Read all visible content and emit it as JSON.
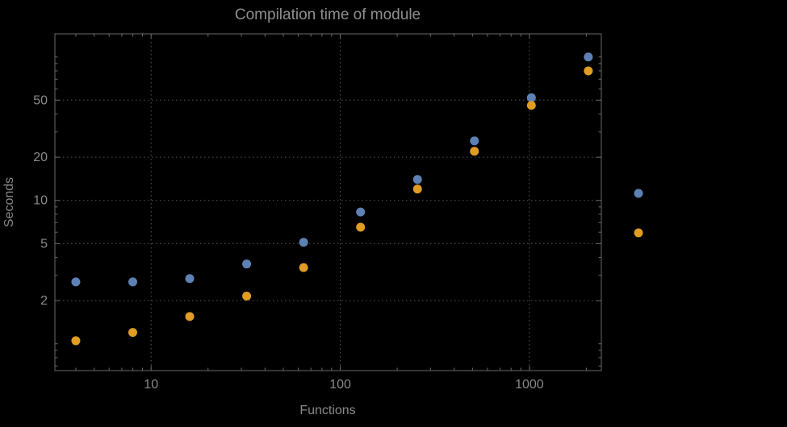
{
  "chart_data": {
    "type": "scatter",
    "title": "Compilation time of module",
    "xlabel": "Functions",
    "ylabel": "Seconds",
    "xscale": "log",
    "yscale": "log",
    "xlim": [
      3.1,
      2400
    ],
    "ylim": [
      0.65,
      145
    ],
    "x_ticks": [
      10,
      100,
      1000
    ],
    "y_ticks": [
      2,
      5,
      10,
      20,
      50
    ],
    "grid": "dotted",
    "legend_position": "right",
    "x": [
      4,
      8,
      16,
      32,
      64,
      128,
      256,
      512,
      1024,
      2048
    ],
    "series": [
      {
        "name": "series-blue",
        "color": "#5e81b5",
        "values": [
          2.7,
          2.7,
          2.85,
          3.6,
          5.1,
          8.3,
          14,
          26,
          52,
          100
        ]
      },
      {
        "name": "series-orange",
        "color": "#e19c24",
        "values": [
          1.05,
          1.2,
          1.55,
          2.15,
          3.4,
          6.5,
          12,
          22,
          46,
          80
        ]
      }
    ],
    "legend_markers": [
      {
        "name": "legend-marker-blue",
        "color": "#5e81b5"
      },
      {
        "name": "legend-marker-orange",
        "color": "#e19c24"
      }
    ]
  },
  "colors": {
    "background": "#000000",
    "frame": "#6a6a6a",
    "grid": "#585858",
    "text": "#8a8a8a",
    "title": "#8f8f8f"
  }
}
